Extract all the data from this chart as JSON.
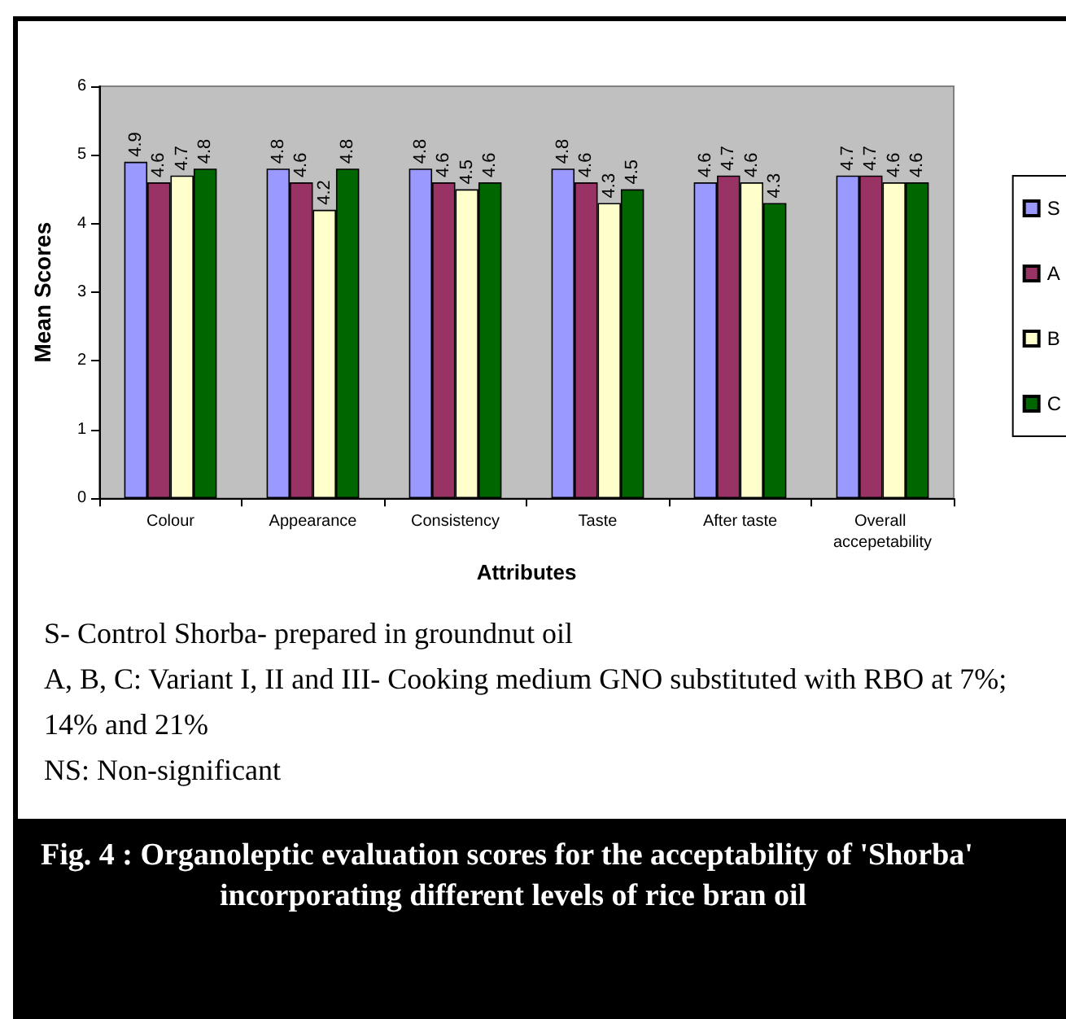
{
  "chart_data": {
    "type": "bar",
    "title": "Fig. 4 :   Organoleptic evaluation scores for the acceptability of 'Shorba' incorporating different levels of rice bran oil",
    "xlabel": "Attributes",
    "ylabel": "Mean Scores",
    "categories": [
      "Colour",
      "Appearance",
      "Consistency",
      "Taste",
      "After taste",
      "Overall accepetability"
    ],
    "series": [
      {
        "name": "S",
        "color": "#9999ff",
        "values": [
          4.9,
          4.8,
          4.8,
          4.8,
          4.6,
          4.7
        ]
      },
      {
        "name": "A",
        "color": "#993366",
        "values": [
          4.6,
          4.6,
          4.6,
          4.6,
          4.7,
          4.7
        ]
      },
      {
        "name": "B",
        "color": "#ffffcc",
        "values": [
          4.7,
          4.2,
          4.5,
          4.3,
          4.6,
          4.6
        ]
      },
      {
        "name": "C",
        "color": "#006600",
        "values": [
          4.8,
          4.8,
          4.6,
          4.5,
          4.3,
          4.6
        ]
      }
    ],
    "ylim": [
      0,
      6
    ],
    "yticks": [
      0,
      1,
      2,
      3,
      4,
      5,
      6
    ],
    "grid": false,
    "legend": "right",
    "data_labels": true,
    "annotations": [
      "S- Control Shorba- prepared in groundnut oil",
      "A, B, C: Variant I, II and III- Cooking medium GNO substituted with RBO at 7%; 14% and 21%",
      "NS: Non-significant"
    ]
  }
}
